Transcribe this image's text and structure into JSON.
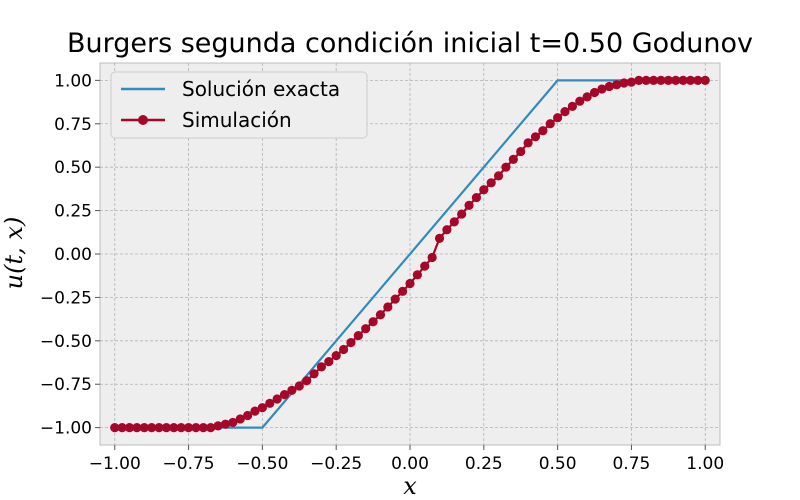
{
  "chart_data": {
    "type": "line",
    "title": "Burgers segunda condición inicial t=0.50 Godunov",
    "xlabel": "x",
    "ylabel": "u(t, x)",
    "xlim": [
      -1.05,
      1.05
    ],
    "ylim": [
      -1.1,
      1.1
    ],
    "x_ticks": [
      -1.0,
      -0.75,
      -0.5,
      -0.25,
      0.0,
      0.25,
      0.5,
      0.75,
      1.0
    ],
    "x_tick_labels": [
      "−1.00",
      "−0.75",
      "−0.50",
      "−0.25",
      "0.00",
      "0.25",
      "0.50",
      "0.75",
      "1.00"
    ],
    "y_ticks": [
      1.0,
      0.75,
      0.5,
      0.25,
      0.0,
      -0.25,
      -0.5,
      -0.75,
      -1.0
    ],
    "y_tick_labels": [
      "1.00",
      "0.75",
      "0.50",
      "0.25",
      "0.00",
      "−0.25",
      "−0.50",
      "−0.75",
      "−1.00"
    ],
    "grid": true,
    "legend_position": "top-left",
    "series": [
      {
        "name": "Solución exacta",
        "color": "#348abd",
        "marker": "none",
        "x": [
          -1.0,
          -0.5,
          0.5,
          1.0
        ],
        "y": [
          -1.0,
          -1.0,
          1.0,
          1.0
        ]
      },
      {
        "name": "Simulación",
        "color": "#a60628",
        "marker": "circle",
        "x": [
          -1.0,
          -0.975,
          -0.95,
          -0.925,
          -0.9,
          -0.875,
          -0.85,
          -0.825,
          -0.8,
          -0.775,
          -0.75,
          -0.725,
          -0.7,
          -0.675,
          -0.65,
          -0.625,
          -0.6,
          -0.575,
          -0.55,
          -0.525,
          -0.5,
          -0.475,
          -0.45,
          -0.425,
          -0.4,
          -0.375,
          -0.35,
          -0.325,
          -0.3,
          -0.275,
          -0.25,
          -0.225,
          -0.2,
          -0.175,
          -0.15,
          -0.125,
          -0.1,
          -0.075,
          -0.05,
          -0.025,
          0.0,
          0.025,
          0.05,
          0.075,
          0.1,
          0.125,
          0.15,
          0.175,
          0.2,
          0.225,
          0.25,
          0.275,
          0.3,
          0.325,
          0.35,
          0.375,
          0.4,
          0.425,
          0.45,
          0.475,
          0.5,
          0.525,
          0.55,
          0.575,
          0.6,
          0.625,
          0.65,
          0.675,
          0.7,
          0.725,
          0.75,
          0.775,
          0.8,
          0.825,
          0.85,
          0.875,
          0.9,
          0.925,
          0.95,
          0.975,
          1.0
        ],
        "y": [
          -1.0,
          -1.0,
          -1.0,
          -1.0,
          -1.0,
          -1.0,
          -1.0,
          -1.0,
          -1.0,
          -1.0,
          -1.0,
          -1.0,
          -1.0,
          -1.0,
          -0.99,
          -0.98,
          -0.97,
          -0.95,
          -0.93,
          -0.905,
          -0.885,
          -0.86,
          -0.835,
          -0.81,
          -0.785,
          -0.76,
          -0.73,
          -0.69,
          -0.65,
          -0.62,
          -0.585,
          -0.55,
          -0.51,
          -0.47,
          -0.43,
          -0.39,
          -0.35,
          -0.305,
          -0.26,
          -0.215,
          -0.17,
          -0.12,
          -0.07,
          -0.02,
          0.09,
          0.14,
          0.185,
          0.23,
          0.28,
          0.325,
          0.37,
          0.41,
          0.45,
          0.5,
          0.545,
          0.59,
          0.64,
          0.675,
          0.71,
          0.75,
          0.785,
          0.82,
          0.85,
          0.88,
          0.905,
          0.93,
          0.95,
          0.965,
          0.975,
          0.985,
          0.99,
          1.0,
          1.0,
          1.0,
          1.0,
          1.0,
          1.0,
          1.0,
          1.0,
          1.0,
          1.0
        ]
      }
    ]
  }
}
